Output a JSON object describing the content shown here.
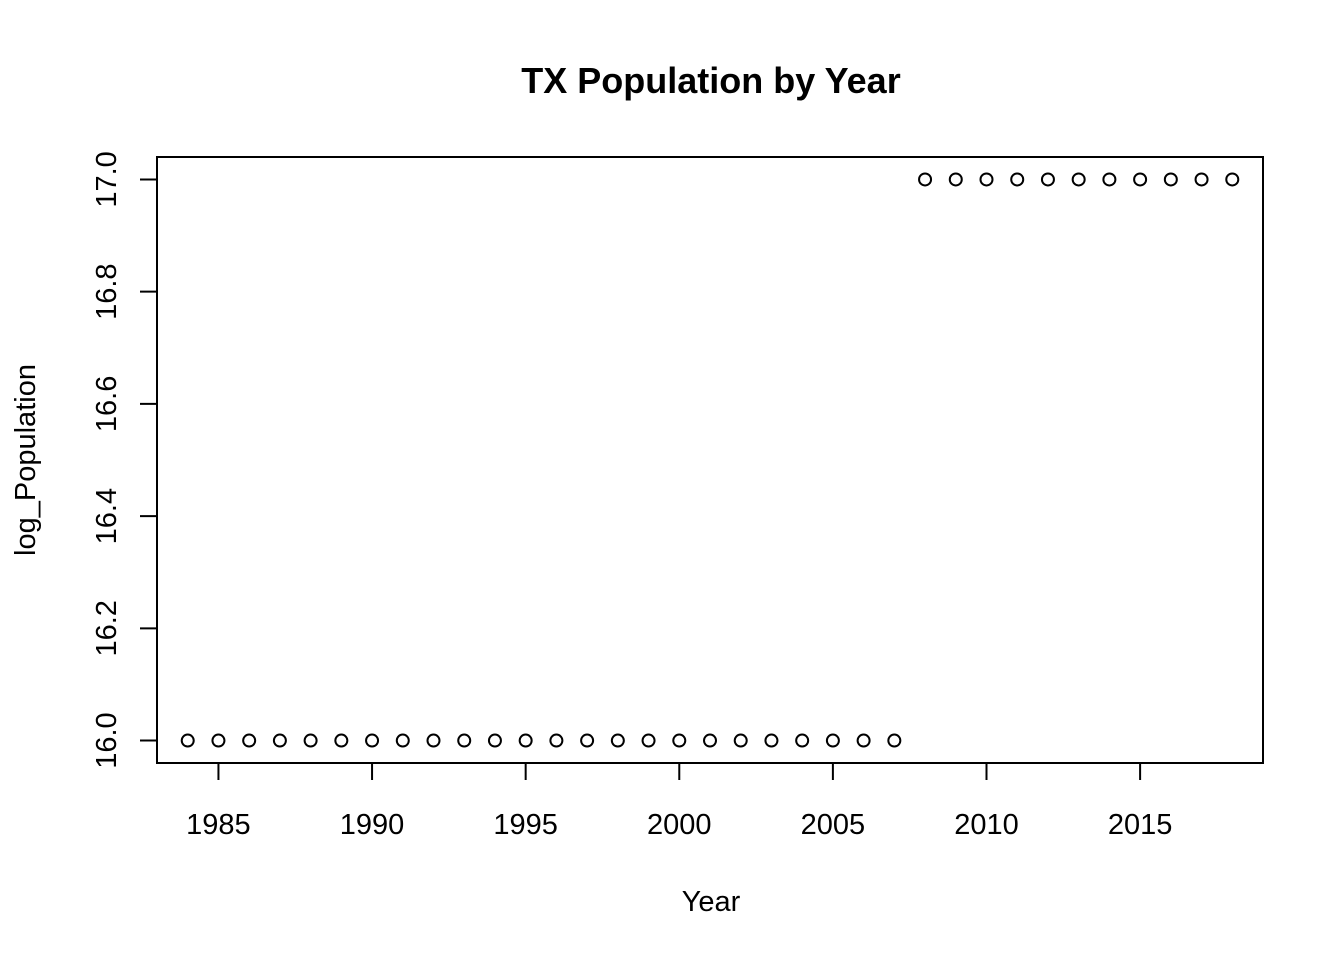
{
  "chart_data": {
    "type": "scatter",
    "title": "TX Population by Year",
    "xlabel": "Year",
    "ylabel": "log_Population",
    "xlim": [
      1983,
      2019
    ],
    "ylim": [
      15.96,
      17.04
    ],
    "x_ticks": [
      1985,
      1990,
      1995,
      2000,
      2005,
      2010,
      2015
    ],
    "x_tick_labels": [
      "1985",
      "1990",
      "1995",
      "2000",
      "2005",
      "2010",
      "2015"
    ],
    "y_ticks": [
      16.0,
      16.2,
      16.4,
      16.6,
      16.8,
      17.0
    ],
    "y_tick_labels": [
      "16.0",
      "16.2",
      "16.4",
      "16.6",
      "16.8",
      "17.0"
    ],
    "marker": "open-circle",
    "color": "#000000",
    "grid": false,
    "legend": "none",
    "series": [
      {
        "x": [
          1984,
          1985,
          1986,
          1987,
          1988,
          1989,
          1990,
          1991,
          1992,
          1993,
          1994,
          1995,
          1996,
          1997,
          1998,
          1999,
          2000,
          2001,
          2002,
          2003,
          2004,
          2005,
          2006,
          2007,
          2008,
          2009,
          2010,
          2011,
          2012,
          2013,
          2014,
          2015,
          2016,
          2017,
          2018
        ],
        "y": [
          16,
          16,
          16,
          16,
          16,
          16,
          16,
          16,
          16,
          16,
          16,
          16,
          16,
          16,
          16,
          16,
          16,
          16,
          16,
          16,
          16,
          16,
          16,
          16,
          17,
          17,
          17,
          17,
          17,
          17,
          17,
          17,
          17,
          17,
          17
        ]
      }
    ]
  }
}
